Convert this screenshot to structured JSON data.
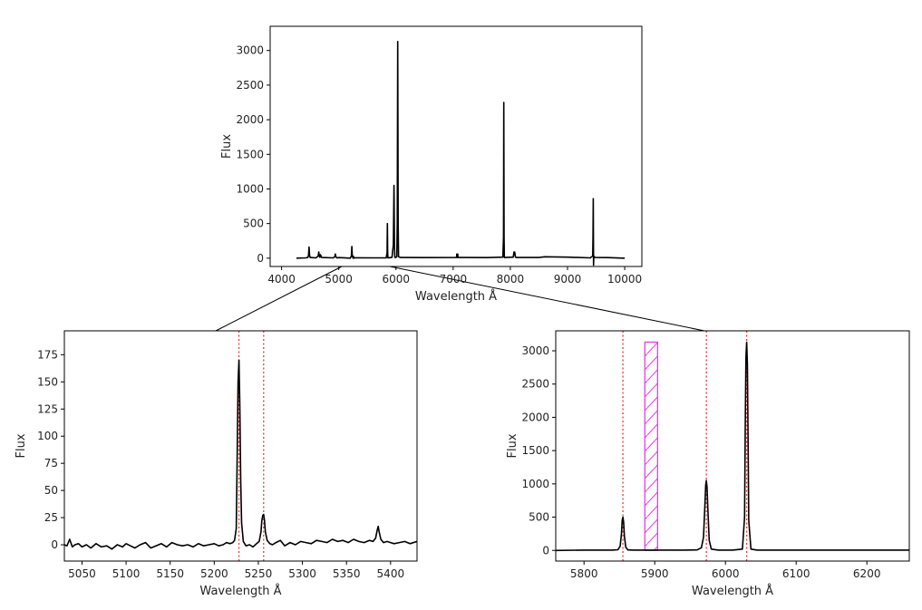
{
  "chart_data": [
    {
      "id": "overview",
      "type": "line",
      "xlabel": "Wavelength Å",
      "ylabel": "Flux",
      "xlim": [
        3800,
        10300
      ],
      "ylim": [
        -120,
        3350
      ],
      "xticks": [
        4000,
        5000,
        6000,
        7000,
        8000,
        9000,
        10000
      ],
      "yticks": [
        0,
        500,
        1000,
        1500,
        2000,
        2500,
        3000
      ],
      "line_color": "#000000",
      "series": [
        {
          "x": [
            4260,
            4420,
            4460,
            4470,
            4480,
            4490,
            4500,
            4600,
            4640,
            4650,
            4660,
            4670,
            4680,
            4700,
            4900,
            4930,
            4940,
            4950,
            4960,
            4970,
            5000,
            5200,
            5220,
            5228,
            5236,
            5250,
            5256,
            5262,
            5280,
            5600,
            5830,
            5845,
            5850,
            5855,
            5860,
            5875,
            5930,
            5955,
            5965,
            5973,
            5980,
            5990,
            6015,
            6022,
            6030,
            6038,
            6045,
            6080,
            6500,
            7060,
            7065,
            7070,
            7080,
            7085,
            7600,
            7870,
            7880,
            7885,
            7890,
            7895,
            7900,
            7910,
            8050,
            8065,
            8070,
            8075,
            8090,
            8100,
            8500,
            8600,
            9000,
            9400,
            9420,
            9440,
            9445,
            9450,
            9455,
            9460,
            9480,
            9700,
            9980,
            10000
          ],
          "y": [
            0,
            5,
            10,
            40,
            160,
            40,
            10,
            5,
            30,
            90,
            30,
            12,
            50,
            10,
            5,
            20,
            60,
            20,
            10,
            5,
            8,
            0,
            30,
            170,
            30,
            0,
            28,
            0,
            6,
            5,
            4,
            80,
            500,
            80,
            4,
            6,
            12,
            200,
            1050,
            200,
            12,
            8,
            20,
            500,
            3130,
            500,
            20,
            10,
            8,
            10,
            60,
            10,
            60,
            10,
            8,
            15,
            300,
            2250,
            300,
            15,
            8,
            10,
            15,
            90,
            50,
            90,
            15,
            10,
            10,
            20,
            15,
            5,
            20,
            30,
            300,
            860,
            -100,
            30,
            10,
            8,
            0,
            0
          ]
        }
      ]
    },
    {
      "id": "zoom-left",
      "type": "line",
      "xlabel": "Wavelength Å",
      "ylabel": "Flux",
      "xlim": [
        5030,
        5430
      ],
      "ylim": [
        -15,
        197
      ],
      "xticks": [
        5050,
        5100,
        5150,
        5200,
        5250,
        5300,
        5350,
        5400
      ],
      "yticks": [
        0,
        25,
        50,
        75,
        100,
        125,
        150,
        175
      ],
      "line_color": "#000000",
      "vlines": [
        5228,
        5256
      ],
      "vline_color": "#e83a3a",
      "series": [
        {
          "x": [
            5030,
            5033,
            5036,
            5039,
            5042,
            5046,
            5050,
            5055,
            5060,
            5066,
            5072,
            5078,
            5084,
            5090,
            5096,
            5100,
            5105,
            5110,
            5116,
            5122,
            5128,
            5134,
            5140,
            5146,
            5152,
            5158,
            5164,
            5170,
            5176,
            5182,
            5188,
            5194,
            5200,
            5205,
            5210,
            5214,
            5218,
            5221,
            5223,
            5225,
            5226,
            5227,
            5228,
            5229,
            5230,
            5231,
            5233,
            5236,
            5240,
            5244,
            5248,
            5251,
            5253,
            5254,
            5255,
            5256,
            5257,
            5258,
            5260,
            5263,
            5266,
            5270,
            5275,
            5280,
            5286,
            5292,
            5298,
            5304,
            5310,
            5316,
            5322,
            5328,
            5334,
            5340,
            5346,
            5352,
            5358,
            5364,
            5370,
            5376,
            5380,
            5383,
            5385,
            5386,
            5387,
            5389,
            5392,
            5396,
            5400,
            5404,
            5410,
            5416,
            5422,
            5430
          ],
          "y": [
            0,
            -1,
            5,
            -2,
            0,
            1,
            -2,
            0,
            -3,
            1,
            -2,
            -1,
            -4,
            0,
            -2,
            1,
            -1,
            -3,
            0,
            2,
            -3,
            -1,
            1,
            -2,
            2,
            0,
            -1,
            0,
            -2,
            1,
            -1,
            0,
            1,
            -1,
            0,
            2,
            1,
            2,
            4,
            15,
            80,
            150,
            170,
            130,
            60,
            20,
            3,
            -1,
            0,
            -2,
            1,
            3,
            12,
            22,
            27,
            28,
            22,
            12,
            4,
            1,
            0,
            2,
            4,
            -1,
            2,
            0,
            3,
            2,
            1,
            4,
            3,
            2,
            5,
            3,
            4,
            2,
            5,
            3,
            2,
            4,
            3,
            6,
            14,
            17,
            12,
            5,
            2,
            3,
            2,
            1,
            2,
            3,
            1,
            3
          ]
        }
      ]
    },
    {
      "id": "zoom-right",
      "type": "line",
      "xlabel": "Wavelength Å",
      "ylabel": "Flux",
      "xlim": [
        5760,
        6260
      ],
      "ylim": [
        -160,
        3300
      ],
      "xticks": [
        5800,
        5900,
        6000,
        6100,
        6200
      ],
      "yticks": [
        0,
        500,
        1000,
        1500,
        2000,
        2500,
        3000
      ],
      "line_color": "#000000",
      "vlines": [
        5855,
        5973,
        6030
      ],
      "vline_color": "#e83a3a",
      "band": {
        "x": [
          5886,
          5904
        ],
        "y": [
          0,
          3130
        ],
        "color": "#e23ee8"
      },
      "series": [
        {
          "x": [
            5760,
            5800,
            5840,
            5848,
            5851,
            5853,
            5854,
            5855,
            5856,
            5857,
            5859,
            5862,
            5870,
            5900,
            5940,
            5960,
            5966,
            5969,
            5971,
            5972,
            5973,
            5974,
            5975,
            5977,
            5980,
            5990,
            6010,
            6024,
            6027,
            6028,
            6029,
            6030,
            6031,
            6032,
            6033,
            6036,
            6045,
            6100,
            6150,
            6200,
            6260
          ],
          "y": [
            0,
            5,
            5,
            10,
            60,
            250,
            450,
            500,
            420,
            220,
            50,
            8,
            5,
            5,
            5,
            8,
            40,
            200,
            700,
            980,
            1050,
            950,
            650,
            150,
            20,
            5,
            5,
            20,
            500,
            1800,
            2900,
            3130,
            2800,
            1600,
            450,
            20,
            5,
            5,
            5,
            5,
            5
          ]
        }
      ]
    }
  ]
}
